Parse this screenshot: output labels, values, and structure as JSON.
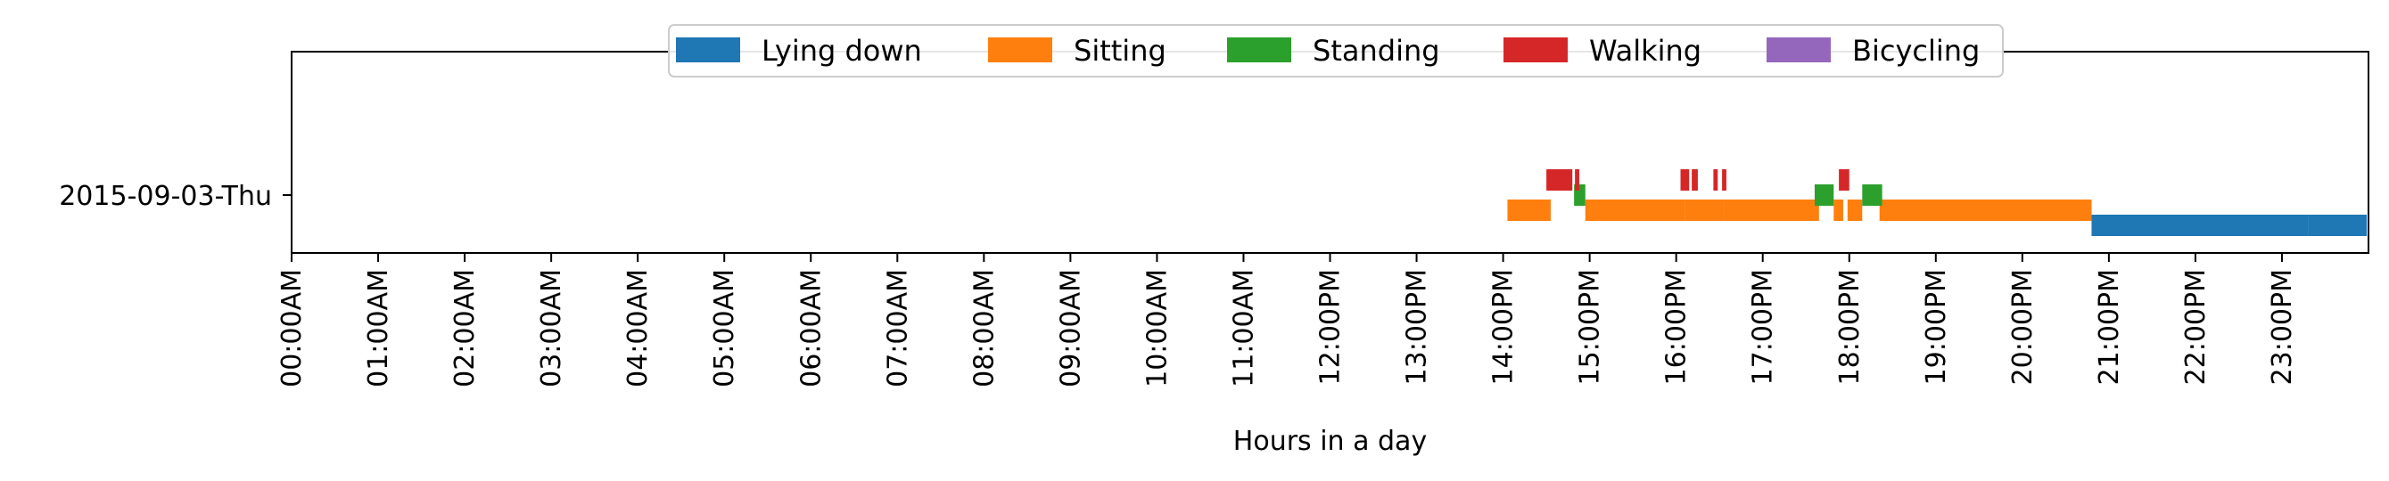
{
  "chart_data": {
    "type": "bar",
    "orientation": "horizontal-timeline",
    "xlabel": "Hours in a day",
    "ylabel": "",
    "xlim": [
      0,
      24
    ],
    "y_categories": [
      "2015-09-03-Thu"
    ],
    "x_tick_labels": [
      "00:00AM",
      "01:00AM",
      "02:00AM",
      "03:00AM",
      "04:00AM",
      "05:00AM",
      "06:00AM",
      "07:00AM",
      "08:00AM",
      "09:00AM",
      "10:00AM",
      "11:00AM",
      "12:00PM",
      "13:00PM",
      "14:00PM",
      "15:00PM",
      "16:00PM",
      "17:00PM",
      "18:00PM",
      "19:00PM",
      "20:00PM",
      "21:00PM",
      "22:00PM",
      "23:00PM"
    ],
    "legend_position": "top-center",
    "grid": false,
    "series": [
      {
        "name": "Lying down",
        "color": "#1f77b4",
        "segments": [
          [
            20.8,
            23.3
          ],
          [
            23.3,
            23.98
          ]
        ]
      },
      {
        "name": "Sitting",
        "color": "#ff7f0e",
        "segments": [
          [
            14.05,
            14.55
          ],
          [
            14.95,
            16.1
          ],
          [
            16.1,
            16.55
          ],
          [
            16.55,
            17.65
          ],
          [
            17.82,
            17.93
          ],
          [
            17.98,
            18.15
          ],
          [
            18.35,
            20.8
          ]
        ]
      },
      {
        "name": "Standing",
        "color": "#2ca02c",
        "segments": [
          [
            14.82,
            14.95
          ],
          [
            17.6,
            17.82
          ],
          [
            18.15,
            18.38
          ]
        ]
      },
      {
        "name": "Walking",
        "color": "#d62728",
        "segments": [
          [
            14.5,
            14.8
          ],
          [
            14.83,
            14.88
          ],
          [
            16.05,
            16.15
          ],
          [
            16.18,
            16.25
          ],
          [
            16.43,
            16.48
          ],
          [
            16.53,
            16.58
          ],
          [
            17.88,
            18.0
          ]
        ]
      },
      {
        "name": "Bicycling",
        "color": "#9467bd",
        "segments": []
      }
    ]
  }
}
